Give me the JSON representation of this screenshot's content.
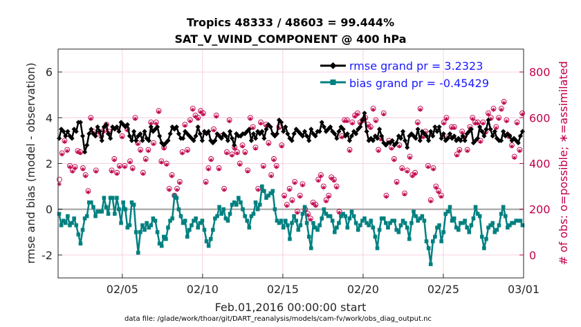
{
  "chart_data": {
    "type": "line",
    "title_line1": "Tropics 48333 / 48603 = 99.444%",
    "title_line2": "SAT_V_WIND_COMPONENT @ 400 hPa",
    "xlabel": "Feb.01,2016 00:00:00 start",
    "ylabel_left": "rmse and bias (model - observation)",
    "ylabel_right": "# of obs: o=possible; ∗=assimilated",
    "footer": "data file: /glade/work/thoar/git/DART_reanalysis/models/cam-fv/work/obs_diag_output.nc",
    "x_ticks": [
      "02/05",
      "02/10",
      "02/15",
      "02/20",
      "02/25",
      "03/01"
    ],
    "x_tick_days": [
      5,
      10,
      15,
      20,
      25,
      30
    ],
    "xlim_days": [
      1,
      30
    ],
    "ylim_left": [
      -3,
      7
    ],
    "left_ticks": [
      "-2",
      "0",
      "2",
      "4",
      "6"
    ],
    "ylim_right": [
      -100,
      900
    ],
    "right_ticks": [
      "0",
      "200",
      "400",
      "600",
      "800"
    ],
    "legend": {
      "rmse_label": "rmse grand pr = 3.2323",
      "bias_label": "bias grand pr = -0.45429"
    },
    "colors": {
      "rmse": "#000000",
      "bias": "#008080",
      "obs": "#c0004a",
      "zero_line": "#b0b0b0",
      "grid": "#f2c6d8"
    },
    "rmse": [
      3.1,
      3.5,
      3.4,
      3.2,
      3.4,
      3.2,
      3.1,
      3.5,
      3.4,
      3.8,
      3.8,
      3.2,
      2.5,
      2.8,
      3.3,
      3.5,
      3.3,
      3.2,
      3.6,
      3.4,
      3.0,
      3.6,
      3.7,
      3.3,
      3.1,
      3.6,
      3.5,
      3.6,
      3.4,
      3.8,
      3.7,
      3.6,
      3.7,
      3.2,
      3.0,
      3.4,
      3.0,
      3.2,
      3.3,
      3.0,
      3.4,
      3.1,
      3.0,
      3.6,
      3.4,
      3.5,
      3.6,
      3.2,
      2.9,
      2.8,
      2.9,
      3.0,
      3.3,
      3.6,
      3.5,
      3.6,
      3.3,
      3.1,
      3.1,
      3.4,
      3.3,
      3.2,
      3.1,
      3.0,
      3.2,
      3.6,
      3.3,
      3.0,
      3.4,
      3.3,
      3.4,
      3.0,
      2.9,
      3.0,
      3.3,
      3.2,
      3.1,
      3.3,
      3.2,
      3.0,
      3.4,
      3.1,
      2.8,
      3.3,
      3.2,
      3.2,
      3.3,
      3.3,
      3.4,
      3.5,
      3.0,
      3.3,
      3.1,
      3.4,
      3.3,
      3.4,
      3.1,
      3.5,
      3.7,
      3.6,
      3.3,
      3.2,
      3.3,
      3.9,
      3.8,
      3.4,
      3.6,
      3.3,
      3.1,
      3.0,
      3.3,
      3.5,
      3.4,
      3.3,
      3.2,
      3.4,
      3.2,
      3.0,
      3.5,
      3.3,
      3.2,
      3.4,
      3.4,
      3.8,
      3.6,
      3.4,
      3.5,
      3.6,
      3.4,
      3.3,
      3.1,
      3.4,
      3.6,
      3.5,
      3.2,
      3.3,
      3.0,
      3.2,
      3.4,
      3.3,
      3.5,
      3.6,
      3.9,
      4.2,
      3.4,
      3.0,
      3.1,
      3.0,
      3.2,
      3.1,
      3.5,
      3.2,
      2.9,
      2.8,
      2.9,
      2.9,
      3.0,
      2.8,
      2.9,
      3.2,
      3.1,
      3.4,
      3.0,
      2.7,
      3.2,
      3.3,
      3.2,
      3.1,
      3.5,
      3.0,
      3.4,
      3.3,
      3.2,
      3.0,
      3.4,
      3.2,
      3.6,
      3.4,
      3.6,
      3.1,
      3.3,
      3.0,
      3.1,
      3.3,
      3.1,
      3.2,
      3.0,
      3.1,
      3.0,
      3.2,
      3.0,
      3.3,
      3.4,
      3.5,
      2.9,
      3.0,
      3.1,
      3.6,
      3.4,
      3.2,
      3.5,
      3.9,
      3.5,
      3.2,
      3.4,
      3.1,
      3.0,
      3.0,
      3.4,
      3.2,
      3.3,
      3.2,
      3.0,
      3.1,
      3.0,
      2.9,
      3.2,
      3.4
    ],
    "bias": [
      -0.2,
      -0.7,
      -0.5,
      -0.6,
      -0.3,
      -0.7,
      -0.6,
      -0.4,
      -0.7,
      -1.1,
      -1.5,
      -0.9,
      -0.4,
      -0.3,
      0.3,
      0.3,
      0.1,
      -0.3,
      -0.1,
      -0.1,
      -0.1,
      0.5,
      0.1,
      -0.2,
      0.5,
      0.5,
      -0.2,
      0.5,
      0.0,
      -0.6,
      0.3,
      0.0,
      -0.8,
      -0.7,
      0.3,
      0.2,
      -1.0,
      -1.9,
      -1.0,
      -0.7,
      -0.9,
      -0.6,
      -0.8,
      -0.7,
      -0.4,
      -0.5,
      -1.0,
      -1.5,
      -1.6,
      -1.2,
      -1.3,
      -0.8,
      -0.5,
      -0.4,
      0.6,
      0.5,
      0.0,
      -0.3,
      -0.6,
      -0.5,
      -1.2,
      -0.9,
      -0.7,
      -0.5,
      -0.4,
      -0.8,
      -0.6,
      -0.5,
      -0.9,
      -1.4,
      -1.6,
      -1.3,
      -0.9,
      -0.4,
      -0.3,
      0.1,
      -0.2,
      0.0,
      -0.4,
      -0.5,
      -0.2,
      0.2,
      0.3,
      0.2,
      0.5,
      0.3,
      0.0,
      -0.3,
      -0.5,
      -0.8,
      -0.3,
      -0.2,
      0.3,
      0.0,
      0.2,
      1.0,
      0.8,
      0.5,
      0.6,
      0.7,
      0.8,
      0.0,
      -0.5,
      -0.6,
      -0.5,
      -0.8,
      -0.5,
      -0.7,
      -1.3,
      -0.6,
      -0.3,
      -0.5,
      -0.9,
      -0.7,
      -0.2,
      0.1,
      -0.6,
      -1.2,
      -1.7,
      -0.6,
      -0.8,
      -0.9,
      -0.7,
      -0.4,
      0.0,
      -0.2,
      -0.3,
      -0.3,
      -0.5,
      -1.0,
      -0.8,
      -0.6,
      -0.3,
      -0.2,
      -0.3,
      -0.8,
      -0.4,
      -0.1,
      -0.3,
      -0.6,
      -0.9,
      -0.7,
      -0.5,
      -0.4,
      -0.6,
      -0.7,
      -0.5,
      -0.8,
      -1.2,
      -1.7,
      -0.9,
      -0.4,
      -0.4,
      -0.6,
      -0.8,
      -0.6,
      -0.5,
      -0.5,
      -0.9,
      -1.0,
      -0.7,
      -0.5,
      -0.6,
      -0.8,
      -1.3,
      -0.6,
      -0.1,
      -0.3,
      -0.5,
      -0.4,
      -0.3,
      -0.5,
      -1.4,
      -1.7,
      -2.4,
      -1.4,
      -1.2,
      -0.8,
      -0.7,
      -1.4,
      -1.0,
      -0.2,
      -0.1,
      0.1,
      -0.5,
      -0.4,
      -0.8,
      -0.9,
      -0.6,
      -0.6,
      -0.5,
      -0.8,
      -1.0,
      -0.7,
      -0.4,
      0.1,
      -0.2,
      -0.3,
      -1.2,
      -1.7,
      -1.3,
      -0.8,
      -0.7,
      -0.6,
      -1.0,
      -0.9,
      -0.7,
      -0.2,
      0.1,
      -0.3,
      -0.8,
      -0.7,
      -0.6,
      -0.6,
      -0.5,
      -0.5,
      -0.5,
      -0.7
    ],
    "obs_possible": [
      330,
      445,
      500,
      460,
      390,
      370,
      385,
      455,
      450,
      380,
      350,
      280,
      600,
      540,
      370,
      540,
      520,
      545,
      570,
      540,
      370,
      420,
      360,
      390,
      520,
      390,
      550,
      410,
      380,
      600,
      490,
      460,
      360,
      420,
      460,
      580,
      490,
      580,
      630,
      410,
      470,
      400,
      290,
      350,
      260,
      290,
      320,
      450,
      570,
      460,
      590,
      640,
      610,
      600,
      630,
      620,
      320,
      380,
      420,
      550,
      610,
      380,
      520,
      290,
      450,
      590,
      440,
      470,
      450,
      400,
      480,
      450,
      370,
      600,
      560,
      470,
      290,
      580,
      390,
      570,
      490,
      350,
      420,
      390,
      560,
      480,
      260,
      220,
      290,
      240,
      320,
      190,
      260,
      310,
      200,
      180,
      160,
      230,
      220,
      330,
      350,
      300,
      240,
      260,
      340,
      330,
      300,
      190,
      520,
      590,
      590,
      460,
      580,
      610,
      620,
      580,
      590,
      600,
      570,
      560,
      640,
      590,
      460,
      510,
      620,
      260,
      500,
      470,
      420,
      320,
      480,
      380,
      270,
      370,
      430,
      350,
      360,
      580,
      640,
      520,
      540,
      390,
      240,
      380,
      300,
      280,
      260,
      580,
      600,
      520,
      560,
      560,
      440,
      460,
      540,
      520,
      460,
      560,
      600,
      580,
      580,
      500,
      580,
      540,
      620,
      600,
      640,
      560,
      600,
      640,
      670,
      590,
      520,
      480,
      430,
      580,
      460,
      620
    ],
    "obs_assimilated": [
      310,
      440,
      495,
      455,
      385,
      365,
      380,
      450,
      445,
      375,
      345,
      275,
      595,
      535,
      365,
      535,
      515,
      540,
      565,
      535,
      365,
      415,
      355,
      385,
      515,
      385,
      545,
      405,
      375,
      595,
      485,
      455,
      355,
      415,
      455,
      575,
      485,
      575,
      625,
      405,
      465,
      395,
      285,
      345,
      255,
      285,
      315,
      445,
      565,
      455,
      585,
      635,
      605,
      595,
      625,
      615,
      315,
      375,
      415,
      545,
      605,
      375,
      515,
      285,
      445,
      585,
      435,
      465,
      445,
      395,
      475,
      445,
      365,
      595,
      555,
      465,
      285,
      575,
      385,
      565,
      485,
      345,
      415,
      385,
      555,
      475,
      255,
      215,
      285,
      235,
      315,
      185,
      255,
      305,
      195,
      175,
      155,
      225,
      215,
      325,
      345,
      295,
      235,
      255,
      335,
      325,
      295,
      185,
      515,
      585,
      585,
      455,
      575,
      605,
      615,
      575,
      585,
      595,
      565,
      555,
      635,
      585,
      455,
      505,
      615,
      255,
      495,
      465,
      415,
      315,
      475,
      375,
      265,
      365,
      425,
      345,
      355,
      575,
      635,
      515,
      535,
      385,
      235,
      375,
      295,
      275,
      255,
      575,
      595,
      515,
      555,
      555,
      435,
      455,
      535,
      515,
      455,
      555,
      595,
      575,
      575,
      495,
      575,
      535,
      615,
      595,
      635,
      555,
      595,
      635,
      665,
      585,
      515,
      475,
      425,
      575,
      455,
      615
    ]
  }
}
